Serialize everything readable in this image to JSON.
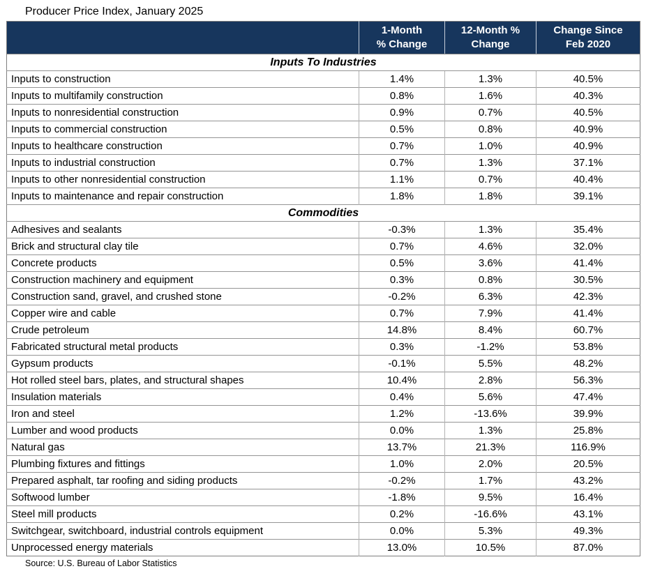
{
  "page": {
    "title": "Producer Price Index, January 2025",
    "source": "Source: U.S. Bureau of Labor Statistics"
  },
  "colors": {
    "header_bg": "#17365D",
    "header_text": "#FFFFFF",
    "row_border": "#949494",
    "column_border": "#B2B2B2",
    "outer_border": "#7F7F7F"
  },
  "chart_data": {
    "type": "table",
    "title": "Producer Price Index, January 2025",
    "columns": [
      {
        "key": "1-month-pct-change",
        "line1": "1-Month",
        "line2": "% Change",
        "label": "1-Month % Change"
      },
      {
        "key": "12-month-pct-change",
        "line1": "12-Month %",
        "line2": "Change",
        "label": "12-Month % Change"
      },
      {
        "key": "change-since-feb-2020",
        "line1": "Change Since",
        "line2": "Feb 2020",
        "label": "Change Since Feb 2020"
      }
    ],
    "sections": [
      {
        "name": "Inputs To Industries",
        "rows": [
          {
            "label": "Inputs to construction",
            "values": [
              "1.4%",
              "1.3%",
              "40.5%"
            ]
          },
          {
            "label": "Inputs to multifamily construction",
            "values": [
              "0.8%",
              "1.6%",
              "40.3%"
            ]
          },
          {
            "label": "Inputs to nonresidential construction",
            "values": [
              "0.9%",
              "0.7%",
              "40.5%"
            ]
          },
          {
            "label": "Inputs to commercial construction",
            "values": [
              "0.5%",
              "0.8%",
              "40.9%"
            ]
          },
          {
            "label": "Inputs to healthcare construction",
            "values": [
              "0.7%",
              "1.0%",
              "40.9%"
            ]
          },
          {
            "label": "Inputs to industrial construction",
            "values": [
              "0.7%",
              "1.3%",
              "37.1%"
            ]
          },
          {
            "label": "Inputs to other nonresidential construction",
            "values": [
              "1.1%",
              "0.7%",
              "40.4%"
            ]
          },
          {
            "label": "Inputs to maintenance and repair construction",
            "values": [
              "1.8%",
              "1.8%",
              "39.1%"
            ]
          }
        ]
      },
      {
        "name": "Commodities",
        "rows": [
          {
            "label": "Adhesives and sealants",
            "values": [
              "-0.3%",
              "1.3%",
              "35.4%"
            ]
          },
          {
            "label": "Brick and structural clay tile",
            "values": [
              "0.7%",
              "4.6%",
              "32.0%"
            ]
          },
          {
            "label": "Concrete products",
            "values": [
              "0.5%",
              "3.6%",
              "41.4%"
            ]
          },
          {
            "label": "Construction machinery and equipment",
            "values": [
              "0.3%",
              "0.8%",
              "30.5%"
            ]
          },
          {
            "label": "Construction sand, gravel, and crushed stone",
            "values": [
              "-0.2%",
              "6.3%",
              "42.3%"
            ]
          },
          {
            "label": "Copper wire and cable",
            "values": [
              "0.7%",
              "7.9%",
              "41.4%"
            ]
          },
          {
            "label": "Crude petroleum",
            "values": [
              "14.8%",
              "8.4%",
              "60.7%"
            ]
          },
          {
            "label": "Fabricated structural metal products",
            "values": [
              "0.3%",
              "-1.2%",
              "53.8%"
            ]
          },
          {
            "label": "Gypsum products",
            "values": [
              "-0.1%",
              "5.5%",
              "48.2%"
            ]
          },
          {
            "label": "Hot rolled steel bars, plates, and structural shapes",
            "values": [
              "10.4%",
              "2.8%",
              "56.3%"
            ]
          },
          {
            "label": "Insulation materials",
            "values": [
              "0.4%",
              "5.6%",
              "47.4%"
            ]
          },
          {
            "label": "Iron and steel",
            "values": [
              "1.2%",
              "-13.6%",
              "39.9%"
            ]
          },
          {
            "label": "Lumber and wood products",
            "values": [
              "0.0%",
              "1.3%",
              "25.8%"
            ]
          },
          {
            "label": "Natural gas",
            "values": [
              "13.7%",
              "21.3%",
              "116.9%"
            ]
          },
          {
            "label": "Plumbing fixtures and fittings",
            "values": [
              "1.0%",
              "2.0%",
              "20.5%"
            ]
          },
          {
            "label": "Prepared asphalt, tar roofing and siding products",
            "values": [
              "-0.2%",
              "1.7%",
              "43.2%"
            ]
          },
          {
            "label": "Softwood lumber",
            "values": [
              "-1.8%",
              "9.5%",
              "16.4%"
            ]
          },
          {
            "label": "Steel mill products",
            "values": [
              "0.2%",
              "-16.6%",
              "43.1%"
            ]
          },
          {
            "label": "Switchgear, switchboard, industrial controls equipment",
            "values": [
              "0.0%",
              "5.3%",
              "49.3%"
            ]
          },
          {
            "label": "Unprocessed energy materials",
            "values": [
              "13.0%",
              "10.5%",
              "87.0%"
            ]
          }
        ]
      }
    ]
  }
}
